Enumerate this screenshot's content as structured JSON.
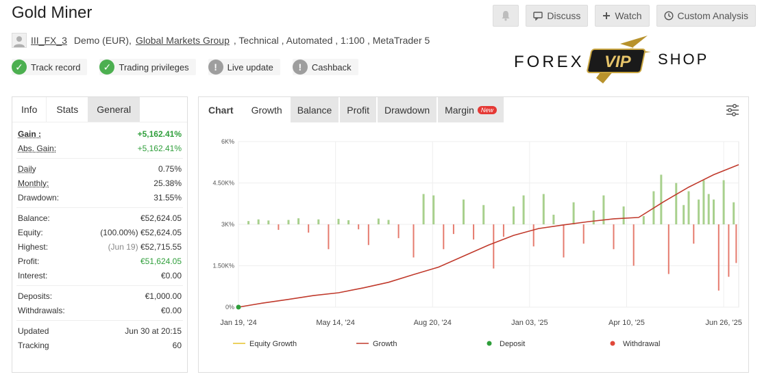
{
  "header": {
    "title": "Gold Miner"
  },
  "toolbar": {
    "discuss": "Discuss",
    "watch": "Watch",
    "custom_analysis": "Custom Analysis"
  },
  "meta": {
    "user": "III_FX_3",
    "account": "Demo (EUR),",
    "broker": "Global Markets Group",
    "details": ", Technical , Automated , 1:100 , MetaTrader 5"
  },
  "badges": [
    {
      "label": "Track record",
      "status": "ok"
    },
    {
      "label": "Trading privileges",
      "status": "ok"
    },
    {
      "label": "Live update",
      "status": "warn"
    },
    {
      "label": "Cashback",
      "status": "warn"
    }
  ],
  "logo": {
    "left": "FOREX",
    "center": "VIP",
    "right": "SHOP"
  },
  "stats_tabs": [
    "Info",
    "Stats",
    "General"
  ],
  "stats": {
    "gain_label": "Gain :",
    "gain": "+5,162.41%",
    "abs_gain_label": "Abs. Gain:",
    "abs_gain": "+5,162.41%",
    "daily_label": "Daily",
    "daily": "0.75%",
    "monthly_label": "Monthly:",
    "monthly": "25.38%",
    "drawdown_label": "Drawdown:",
    "drawdown": "31.55%",
    "balance_label": "Balance:",
    "balance": "€52,624.05",
    "equity_label": "Equity:",
    "equity_pct": "(100.00%)",
    "equity": "€52,624.05",
    "highest_label": "Highest:",
    "highest_date": "(Jun 19)",
    "highest": "€52,715.55",
    "profit_label": "Profit:",
    "profit": "€51,624.05",
    "interest_label": "Interest:",
    "interest": "€0.00",
    "deposits_label": "Deposits:",
    "deposits": "€1,000.00",
    "withdrawals_label": "Withdrawals:",
    "withdrawals": "€0.00",
    "updated_label": "Updated",
    "updated": "Jun 30 at 20:15",
    "tracking_label": "Tracking",
    "tracking": "60"
  },
  "chart_tabs": {
    "label": "Chart",
    "items": [
      "Growth",
      "Balance",
      "Profit",
      "Drawdown",
      "Margin"
    ],
    "new_badge": "New"
  },
  "chart_data": {
    "type": "line",
    "y_ticks": [
      "0%",
      "1.50K%",
      "3K%",
      "4.50K%",
      "6K%"
    ],
    "ylim": [
      0,
      6000
    ],
    "x_ticks": [
      "Jan 19, '24",
      "May 14, '24",
      "Aug 20, '24",
      "Jan 03, '25",
      "Apr 10, '25",
      "Jun 26, '25"
    ],
    "legend": [
      "Equity Growth",
      "Growth",
      "Deposit",
      "Withdrawal"
    ],
    "colors": {
      "growth": "#c0392b",
      "equity": "#e6c229",
      "deposit": "#2e9e3a",
      "withdrawal": "#e0483a",
      "bar_pos": "#a8d08d",
      "bar_neg": "#e57a6d"
    },
    "growth_points": [
      [
        0,
        0
      ],
      [
        0.05,
        150
      ],
      [
        0.1,
        280
      ],
      [
        0.15,
        420
      ],
      [
        0.2,
        520
      ],
      [
        0.25,
        700
      ],
      [
        0.3,
        900
      ],
      [
        0.35,
        1180
      ],
      [
        0.4,
        1450
      ],
      [
        0.45,
        1850
      ],
      [
        0.5,
        2250
      ],
      [
        0.55,
        2600
      ],
      [
        0.6,
        2850
      ],
      [
        0.65,
        2980
      ],
      [
        0.7,
        3100
      ],
      [
        0.75,
        3200
      ],
      [
        0.8,
        3250
      ],
      [
        0.85,
        3820
      ],
      [
        0.9,
        4350
      ],
      [
        0.95,
        4800
      ],
      [
        1,
        5162
      ]
    ],
    "daily_bars": [
      [
        0.02,
        120
      ],
      [
        0.04,
        180
      ],
      [
        0.06,
        140
      ],
      [
        0.08,
        -200
      ],
      [
        0.1,
        160
      ],
      [
        0.12,
        220
      ],
      [
        0.14,
        -300
      ],
      [
        0.16,
        180
      ],
      [
        0.18,
        -900
      ],
      [
        0.2,
        200
      ],
      [
        0.22,
        150
      ],
      [
        0.24,
        -180
      ],
      [
        0.26,
        -750
      ],
      [
        0.28,
        210
      ],
      [
        0.3,
        160
      ],
      [
        0.32,
        -500
      ],
      [
        0.35,
        -1200
      ],
      [
        0.37,
        1100
      ],
      [
        0.39,
        1050
      ],
      [
        0.41,
        -900
      ],
      [
        0.43,
        -350
      ],
      [
        0.45,
        900
      ],
      [
        0.47,
        -550
      ],
      [
        0.49,
        700
      ],
      [
        0.51,
        -1600
      ],
      [
        0.53,
        -450
      ],
      [
        0.55,
        650
      ],
      [
        0.57,
        1050
      ],
      [
        0.59,
        -800
      ],
      [
        0.61,
        1100
      ],
      [
        0.63,
        350
      ],
      [
        0.65,
        -1200
      ],
      [
        0.67,
        800
      ],
      [
        0.69,
        -700
      ],
      [
        0.71,
        500
      ],
      [
        0.73,
        1050
      ],
      [
        0.75,
        -900
      ],
      [
        0.77,
        650
      ],
      [
        0.79,
        -1500
      ],
      [
        0.81,
        300
      ],
      [
        0.83,
        1200
      ],
      [
        0.845,
        1800
      ],
      [
        0.86,
        -1800
      ],
      [
        0.875,
        1500
      ],
      [
        0.89,
        700
      ],
      [
        0.9,
        1200
      ],
      [
        0.91,
        -700
      ],
      [
        0.92,
        900
      ],
      [
        0.93,
        1600
      ],
      [
        0.94,
        1100
      ],
      [
        0.95,
        900
      ],
      [
        0.96,
        -2400
      ],
      [
        0.97,
        1600
      ],
      [
        0.98,
        -1900
      ],
      [
        0.99,
        800
      ],
      [
        0.995,
        -1400
      ]
    ]
  }
}
